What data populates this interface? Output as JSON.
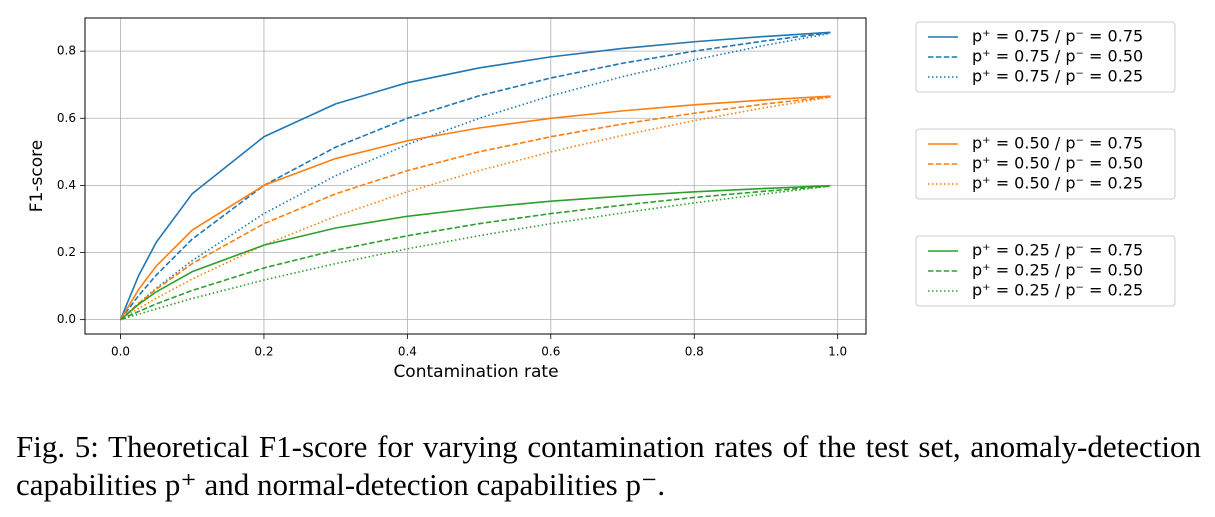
{
  "chart_data": {
    "type": "line",
    "xlabel": "Contamination rate",
    "ylabel": "F1-score",
    "x": [
      0,
      0.025,
      0.05,
      0.1,
      0.2,
      0.3,
      0.4,
      0.5,
      0.6,
      0.7,
      0.8,
      0.9,
      0.99
    ],
    "series": [
      {
        "name": "p⁺ = 0.75 / p⁻ = 0.75",
        "color": "#1f77b4",
        "dash": "solid",
        "values": [
          0,
          0.13,
          0.231,
          0.375,
          0.545,
          0.643,
          0.706,
          0.75,
          0.783,
          0.808,
          0.828,
          0.844,
          0.856
        ]
      },
      {
        "name": "p⁺ = 0.75 / p⁻ = 0.50",
        "color": "#1f77b4",
        "dash": "dashed",
        "values": [
          0,
          0.071,
          0.133,
          0.24,
          0.4,
          0.514,
          0.6,
          0.667,
          0.72,
          0.764,
          0.8,
          0.831,
          0.855
        ]
      },
      {
        "name": "p⁺ = 0.75 / p⁻ = 0.25",
        "color": "#1f77b4",
        "dash": "dotted",
        "values": [
          0,
          0.048,
          0.094,
          0.176,
          0.316,
          0.429,
          0.522,
          0.6,
          0.667,
          0.724,
          0.774,
          0.818,
          0.853
        ]
      },
      {
        "name": "p⁺ = 0.50 / p⁻ = 0.75",
        "color": "#ff7f0e",
        "dash": "solid",
        "values": [
          0,
          0.089,
          0.16,
          0.267,
          0.4,
          0.48,
          0.533,
          0.571,
          0.6,
          0.622,
          0.64,
          0.655,
          0.666
        ]
      },
      {
        "name": "p⁺ = 0.50 / p⁻ = 0.50",
        "color": "#ff7f0e",
        "dash": "dashed",
        "values": [
          0,
          0.048,
          0.091,
          0.167,
          0.286,
          0.375,
          0.444,
          0.5,
          0.545,
          0.583,
          0.615,
          0.643,
          0.664
        ]
      },
      {
        "name": "p⁺ = 0.50 / p⁻ = 0.25",
        "color": "#ff7f0e",
        "dash": "dotted",
        "values": [
          0,
          0.033,
          0.064,
          0.121,
          0.222,
          0.308,
          0.381,
          0.444,
          0.5,
          0.549,
          0.593,
          0.632,
          0.663
        ]
      },
      {
        "name": "p⁺ = 0.25 / p⁻ = 0.75",
        "color": "#2ca02c",
        "dash": "solid",
        "values": [
          0,
          0.045,
          0.083,
          0.143,
          0.222,
          0.273,
          0.308,
          0.333,
          0.353,
          0.368,
          0.381,
          0.391,
          0.399
        ]
      },
      {
        "name": "p⁺ = 0.25 / p⁻ = 0.50",
        "color": "#2ca02c",
        "dash": "dashed",
        "values": [
          0,
          0.024,
          0.047,
          0.087,
          0.154,
          0.207,
          0.25,
          0.286,
          0.316,
          0.341,
          0.364,
          0.383,
          0.398
        ]
      },
      {
        "name": "p⁺ = 0.25 / p⁻ = 0.25",
        "color": "#2ca02c",
        "dash": "dotted",
        "values": [
          0,
          0.016,
          0.032,
          0.063,
          0.118,
          0.167,
          0.211,
          0.25,
          0.286,
          0.318,
          0.348,
          0.375,
          0.398
        ]
      }
    ],
    "xlim": [
      -0.0495,
      1.0395
    ],
    "ylim": [
      -0.0428,
      0.8988
    ],
    "xticks": [
      {
        "value": 0,
        "label": "0.0"
      },
      0.2,
      0.4,
      0.6,
      0.8,
      {
        "value": 1,
        "label": "1.0"
      }
    ],
    "yticks": [
      {
        "value": 0,
        "label": "0.0"
      },
      0.2,
      0.4,
      0.6,
      0.8
    ],
    "grid": true,
    "legend": "outside right"
  },
  "caption": "Fig. 5: Theoretical F1-score for varying contamination rates of the test set, anomaly-detection capabilities p⁺ and normal-detection capabilities p⁻."
}
